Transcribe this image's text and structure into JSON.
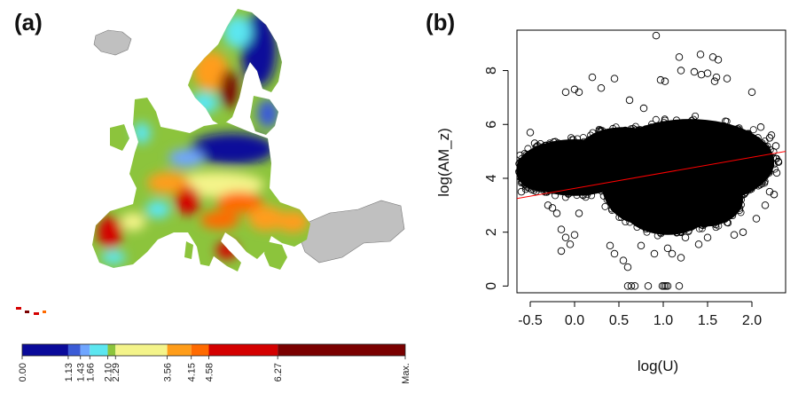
{
  "panels": {
    "a_label": "(a)",
    "b_label": "(b)"
  },
  "map_legend": {
    "colors": [
      "#0a0a9a",
      "#3b5bd6",
      "#6fa6ff",
      "#5ce6f0",
      "#8cc43c",
      "#f4f48a",
      "#ff9d1a",
      "#ff6a00",
      "#d40000",
      "#7a0000"
    ],
    "breaks": [
      "0.00",
      "1.13",
      "1.43",
      "1.66",
      "2.10",
      "2.29",
      "3.56",
      "4.15",
      "4.58",
      "6.27",
      "Max."
    ],
    "break_values": [
      0.0,
      1.13,
      1.43,
      1.66,
      2.1,
      2.29,
      3.56,
      4.15,
      4.58,
      6.27,
      9.4
    ],
    "no_data_color": "#c0c0c0"
  },
  "chart_data": [
    {
      "type": "scatter",
      "xlabel": "log(U)",
      "ylabel": "log(AM_z)",
      "xlim": [
        -0.65,
        2.38
      ],
      "ylim": [
        -0.25,
        9.5
      ],
      "xticks": [
        -0.5,
        0.0,
        0.5,
        1.0,
        1.5,
        2.0
      ],
      "xtick_labels": [
        "-0.5",
        "0.0",
        "0.5",
        "1.0",
        "1.5",
        "2.0"
      ],
      "yticks": [
        0,
        2,
        4,
        6,
        8
      ],
      "ytick_labels": [
        "0",
        "2",
        "4",
        "6",
        "8"
      ],
      "marker": "open-circle",
      "grid": false,
      "series": [
        {
          "points": [
            [
              0.92,
              9.3
            ],
            [
              1.18,
              8.5
            ],
            [
              1.42,
              8.6
            ],
            [
              1.56,
              8.5
            ],
            [
              1.62,
              8.4
            ],
            [
              1.2,
              8.0
            ],
            [
              1.35,
              7.95
            ],
            [
              1.43,
              7.85
            ],
            [
              1.5,
              7.9
            ],
            [
              1.6,
              7.75
            ],
            [
              1.72,
              7.7
            ],
            [
              1.58,
              7.6
            ],
            [
              0.97,
              7.65
            ],
            [
              1.02,
              7.6
            ],
            [
              0.45,
              7.7
            ],
            [
              0.2,
              7.75
            ],
            [
              0.3,
              7.35
            ],
            [
              0.05,
              7.2
            ],
            [
              -0.1,
              7.2
            ],
            [
              0.0,
              7.3
            ],
            [
              2.0,
              7.2
            ],
            [
              0.62,
              6.9
            ],
            [
              0.78,
              6.6
            ],
            [
              -0.5,
              5.7
            ],
            [
              -0.45,
              5.3
            ],
            [
              -0.55,
              3.6
            ],
            [
              -0.6,
              3.5
            ],
            [
              -0.6,
              4.0
            ],
            [
              -0.3,
              3.0
            ],
            [
              -0.25,
              2.9
            ],
            [
              -0.2,
              2.7
            ],
            [
              -0.1,
              1.8
            ],
            [
              0.0,
              1.9
            ],
            [
              -0.15,
              2.1
            ],
            [
              0.05,
              2.7
            ],
            [
              0.4,
              1.5
            ],
            [
              0.45,
              1.2
            ],
            [
              0.55,
              0.95
            ],
            [
              0.6,
              0.7
            ],
            [
              0.75,
              1.5
            ],
            [
              0.9,
              1.2
            ],
            [
              1.05,
              1.4
            ],
            [
              1.1,
              1.2
            ],
            [
              1.2,
              1.05
            ],
            [
              1.4,
              1.55
            ],
            [
              1.25,
              1.8
            ],
            [
              1.5,
              1.8
            ],
            [
              1.8,
              1.9
            ],
            [
              1.9,
              2.0
            ],
            [
              2.05,
              2.5
            ],
            [
              2.15,
              3.0
            ],
            [
              2.2,
              3.5
            ],
            [
              2.25,
              3.4
            ],
            [
              2.28,
              4.2
            ],
            [
              2.3,
              4.6
            ],
            [
              2.27,
              5.2
            ],
            [
              2.2,
              5.5
            ],
            [
              2.1,
              5.9
            ],
            [
              2.22,
              5.6
            ],
            [
              -0.15,
              1.3
            ],
            [
              -0.05,
              1.55
            ],
            [
              0.6,
              0.0
            ],
            [
              0.64,
              0.0
            ],
            [
              0.68,
              0.0
            ],
            [
              0.83,
              0.0
            ],
            [
              0.99,
              0.0
            ],
            [
              1.01,
              0.0
            ],
            [
              1.03,
              0.0
            ],
            [
              1.05,
              0.0
            ],
            [
              1.18,
              0.0
            ]
          ]
        }
      ],
      "fit_line": {
        "color": "#ff0000",
        "x": [
          -0.65,
          2.38
        ],
        "y": [
          3.25,
          5.0
        ]
      }
    }
  ]
}
